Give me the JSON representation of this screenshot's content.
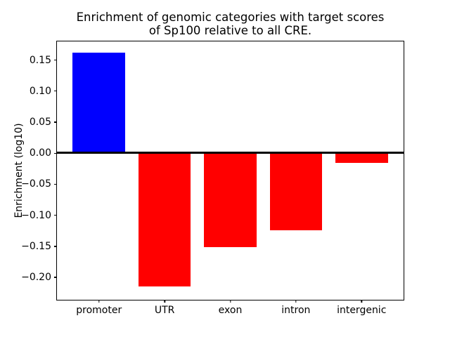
{
  "chart_data": {
    "type": "bar",
    "title": "Enrichment of genomic categories with target scores\nof Sp100 relative to all CRE.",
    "title_lines": [
      "Enrichment of genomic categories with target scores",
      "of Sp100 relative to all CRE."
    ],
    "ylabel": "Enrichment (log10)",
    "xlabel": "",
    "categories": [
      "promoter",
      "UTR",
      "exon",
      "intron",
      "intergenic"
    ],
    "values": [
      0.162,
      -0.215,
      -0.151,
      -0.124,
      -0.016
    ],
    "bar_colors": [
      "#0000ff",
      "#ff0000",
      "#ff0000",
      "#ff0000",
      "#ff0000"
    ],
    "bar_width_units": 0.8,
    "xlim": [
      -0.64,
      4.64
    ],
    "ylim": [
      -0.236,
      0.18
    ],
    "yticks": [
      0.15,
      0.1,
      0.05,
      0.0,
      -0.05,
      -0.1,
      -0.15,
      -0.2
    ],
    "ytick_labels": [
      "0.15",
      "0.10",
      "0.05",
      "0.00",
      "−0.05",
      "−0.10",
      "−0.15",
      "−0.20"
    ],
    "zero_line": {
      "value": 0,
      "color": "#000000"
    },
    "grid": false,
    "legend": null,
    "background_color": "#ffffff",
    "spine_color": "#000000"
  }
}
